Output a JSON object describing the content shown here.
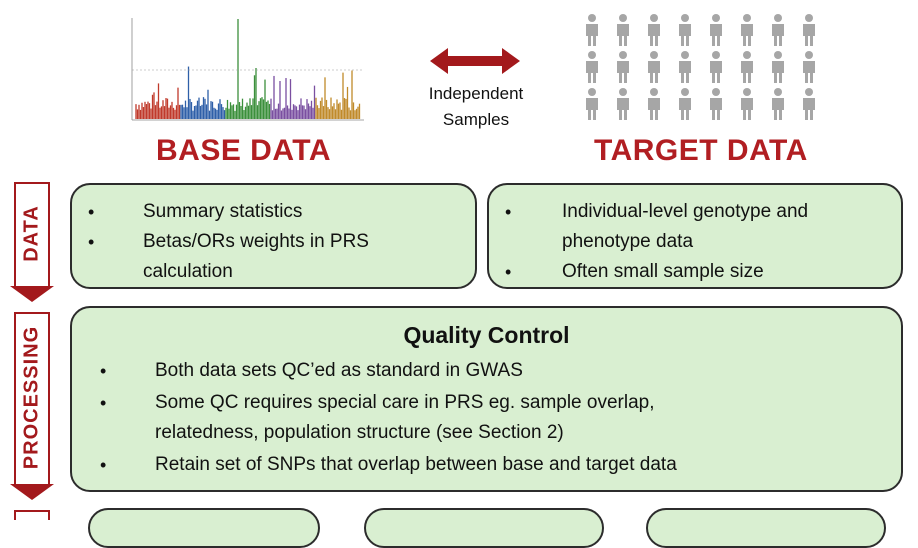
{
  "base": {
    "title": "BASE DATA"
  },
  "target": {
    "title": "TARGET DATA"
  },
  "link": {
    "line1": "Independent",
    "line2": "Samples"
  },
  "stages": {
    "data": "DATA",
    "processing": "PROCESSING"
  },
  "base_box": {
    "bullets": [
      "Summary statistics",
      "Betas/ORs weights in PRS",
      "calculation"
    ]
  },
  "target_box": {
    "bullets": [
      "Individual-level genotype and",
      "phenotype data",
      "Often small sample size"
    ]
  },
  "qc_box": {
    "title": "Quality Control",
    "lines": [
      "Both data sets QC’ed as standard in GWAS",
      "Some QC requires special care in PRS eg. sample overlap,",
      "relatedness, population structure (see Section 2)",
      "Retain set of SNPs that overlap between base and target data"
    ]
  },
  "colors": {
    "accent": "#a3191c",
    "box_fill": "#d9efd1",
    "person": "#a6a6a6"
  }
}
